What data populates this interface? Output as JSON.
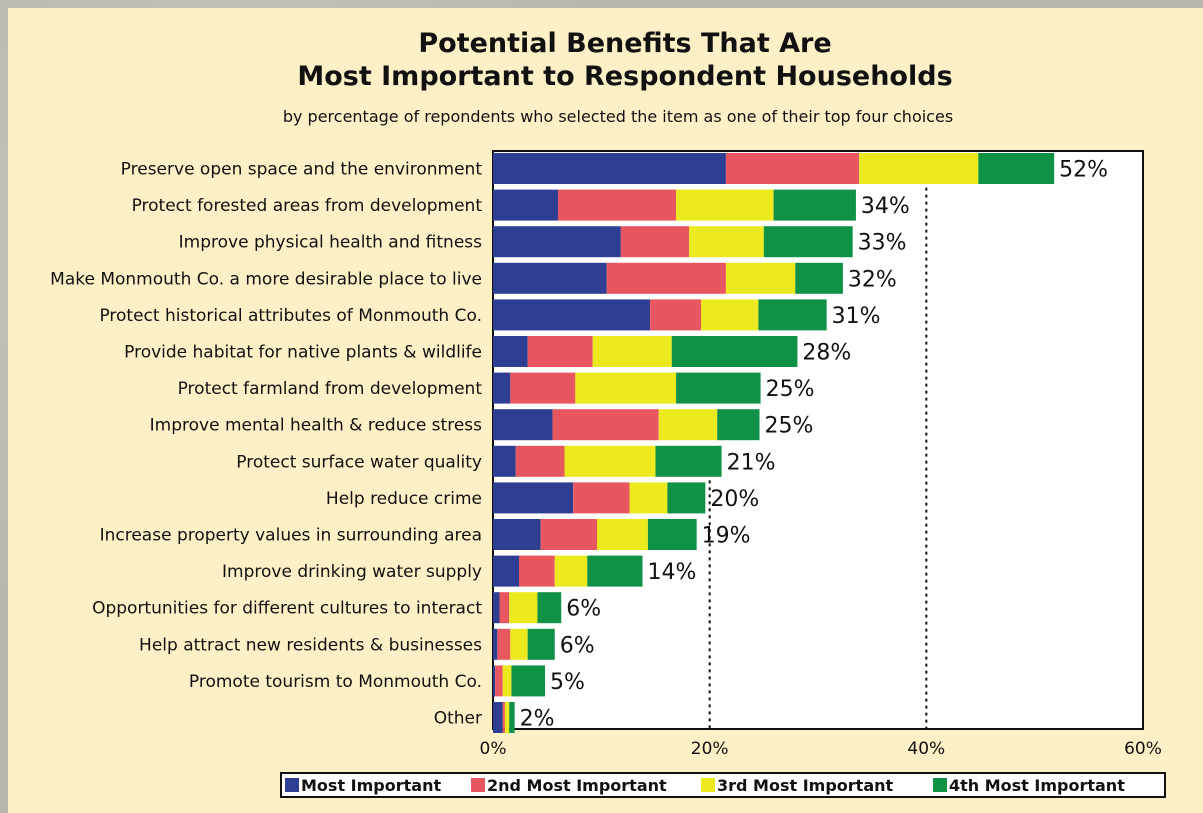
{
  "chart_data": {
    "type": "bar",
    "orientation": "horizontal",
    "stacked": true,
    "title_line1": "Potential Benefits That Are",
    "title_line2": "Most Important to Respondent Households",
    "subtitle": "by percentage of repondents who selected the item as one of their top four choices",
    "xlim": [
      0,
      60
    ],
    "x_ticks": [
      "0%",
      "20%",
      "40%",
      "60%"
    ],
    "x_tick_values": [
      0,
      20,
      40,
      60
    ],
    "reference_lines": [
      20,
      40
    ],
    "legend_position": "bottom",
    "categories": [
      "Preserve open space and the environment",
      "Protect forested areas from development",
      "Improve physical health and fitness",
      "Make Monmouth Co. a more desirable place to live",
      "Protect historical attributes of Monmouth Co.",
      "Provide habitat for native plants & wildlife",
      "Protect farmland from development",
      "Improve mental health & reduce stress",
      "Protect surface water quality",
      "Help reduce crime",
      "Increase property values in surrounding area",
      "Improve drinking water supply",
      "Opportunities for different cultures to interact",
      "Help attract new residents & businesses",
      "Promote tourism to Monmouth Co.",
      "Other"
    ],
    "totals": [
      "52%",
      "34%",
      "33%",
      "32%",
      "31%",
      "28%",
      "25%",
      "25%",
      "21%",
      "20%",
      "19%",
      "14%",
      "6%",
      "6%",
      "5%",
      "2%"
    ],
    "series": [
      {
        "name": "Most Important",
        "color": "#2e3e93",
        "values": [
          21.5,
          6.0,
          11.8,
          10.5,
          14.5,
          3.2,
          1.6,
          5.5,
          2.1,
          7.4,
          4.4,
          2.4,
          0.6,
          0.4,
          0.2,
          0.9
        ]
      },
      {
        "name": "2nd Most Important",
        "color": "#e8565f",
        "values": [
          12.3,
          10.9,
          6.3,
          11.0,
          4.7,
          6.0,
          6.0,
          9.8,
          4.5,
          5.2,
          5.2,
          3.3,
          0.9,
          1.2,
          0.7,
          0.2
        ]
      },
      {
        "name": "3rd Most Important",
        "color": "#ecea1e",
        "values": [
          11.0,
          9.0,
          6.9,
          6.4,
          5.3,
          7.3,
          9.3,
          5.4,
          8.4,
          3.5,
          4.7,
          3.0,
          2.6,
          1.6,
          0.8,
          0.4
        ]
      },
      {
        "name": "4th Most Important",
        "color": "#0f9146",
        "values": [
          7.0,
          7.6,
          8.2,
          4.4,
          6.3,
          11.6,
          7.8,
          3.9,
          6.1,
          3.5,
          4.5,
          5.1,
          2.2,
          2.5,
          3.1,
          0.5
        ]
      }
    ]
  }
}
